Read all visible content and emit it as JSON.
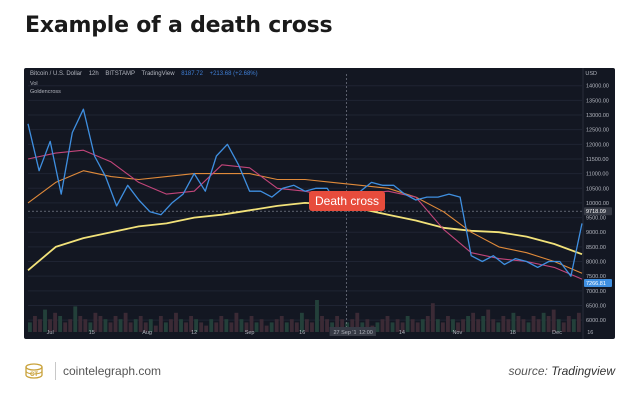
{
  "title": "Example of a death cross",
  "chart_header": {
    "pair": "Bitcoin / U.S. Dollar",
    "interval": "12h",
    "exchange": "BITSTAMP",
    "platform": "TradingView",
    "price": "8187.72",
    "change": "+213.68 (+2.68%)",
    "vol_label": "Vol",
    "indicator_label": "Goldencross",
    "currency": "USD"
  },
  "annotation": "Death cross",
  "footer": {
    "site": "cointelegraph.com",
    "source_prefix": "source:",
    "source_name": "Tradingview"
  },
  "colors": {
    "background": "#131722",
    "price_line": "#3f8fe0",
    "ma_short": "#c2457a",
    "ma_mid": "#e08a3a",
    "ma_long": "#f2e27a",
    "callout": "#e74c3c"
  },
  "chart_data": {
    "type": "line",
    "title": "Example of a death cross",
    "x_tick_labels": [
      "Jul",
      "15",
      "Aug",
      "12",
      "Sep",
      "16",
      "27 Sep '19",
      "12:00",
      "14",
      "Nov",
      "18",
      "Dec",
      "16"
    ],
    "y_tick_labels": [
      14000,
      13500,
      13000,
      12500,
      12000,
      11500,
      11000,
      10500,
      10000,
      9500,
      9000,
      8500,
      8000,
      7500,
      7000,
      6500,
      6000
    ],
    "ylim": [
      5800,
      14400
    ],
    "crosshair_price": 9718.09,
    "last_price": 7266.81,
    "series": [
      {
        "key": "price",
        "x": [
          0,
          2,
          4,
          6,
          8,
          10,
          12,
          14,
          16,
          18,
          20,
          22,
          24,
          26,
          28,
          30,
          32,
          34,
          36,
          38,
          40,
          42,
          44,
          46,
          48,
          50,
          52,
          54,
          56,
          58,
          60,
          62,
          64,
          66,
          68,
          70,
          72,
          74,
          76,
          78,
          80,
          82,
          84,
          86,
          88,
          90,
          92,
          94,
          96,
          98,
          100
        ],
        "values": [
          12700,
          11100,
          12100,
          10300,
          12400,
          13200,
          11600,
          10900,
          9900,
          10600,
          10100,
          9700,
          9600,
          10000,
          10300,
          11000,
          10400,
          11600,
          12000,
          11300,
          10400,
          10400,
          10200,
          10500,
          10600,
          10400,
          10500,
          10500,
          9900,
          10100,
          10400,
          10700,
          10600,
          10600,
          10300,
          10100,
          10200,
          10200,
          10300,
          10200,
          8200,
          8000,
          8200,
          7900,
          8100,
          8000,
          7800,
          8000,
          8000,
          7500,
          9300
        ]
      },
      {
        "key": "ma_short",
        "x": [
          0,
          5,
          10,
          15,
          20,
          25,
          30,
          35,
          40,
          45,
          50,
          55,
          60,
          65,
          70,
          75,
          80,
          85,
          90,
          95,
          100
        ],
        "values": [
          11500,
          11700,
          11800,
          11400,
          10700,
          10300,
          10400,
          11300,
          11200,
          10500,
          10400,
          10200,
          10300,
          10400,
          10200,
          9100,
          8300,
          8100,
          8000,
          7800,
          7400
        ]
      },
      {
        "key": "ma_mid",
        "x": [
          0,
          5,
          10,
          15,
          20,
          25,
          30,
          35,
          40,
          45,
          50,
          55,
          60,
          65,
          70,
          75,
          80,
          85,
          90,
          95,
          100
        ],
        "values": [
          10000,
          10700,
          11100,
          10900,
          10800,
          10900,
          11000,
          11000,
          11000,
          10800,
          10800,
          10700,
          10600,
          10500,
          10200,
          9700,
          9000,
          8500,
          8300,
          8000,
          7600
        ]
      },
      {
        "key": "ma_long",
        "x": [
          0,
          5,
          10,
          15,
          20,
          25,
          30,
          35,
          40,
          45,
          50,
          55,
          60,
          65,
          70,
          75,
          80,
          85,
          90,
          95,
          100
        ],
        "values": [
          7700,
          8500,
          8800,
          9000,
          9200,
          9300,
          9500,
          9600,
          9750,
          9900,
          10000,
          9950,
          9800,
          9600,
          9400,
          9150,
          9050,
          9000,
          8850,
          8600,
          8250
        ]
      }
    ],
    "volume": [
      3,
      5,
      4,
      7,
      4,
      6,
      5,
      3,
      4,
      8,
      5,
      4,
      3,
      6,
      5,
      4,
      3,
      5,
      4,
      6,
      3,
      4,
      5,
      3,
      4,
      2,
      5,
      3,
      4,
      6,
      4,
      3,
      5,
      4,
      3,
      2,
      4,
      3,
      5,
      4,
      3,
      6,
      4,
      3,
      5,
      3,
      4,
      2,
      3,
      4,
      5,
      3,
      4,
      3,
      6,
      4,
      3,
      10,
      5,
      4,
      3,
      5,
      4,
      3,
      4,
      6,
      3,
      4,
      2,
      3,
      4,
      5,
      3,
      4,
      3,
      5,
      4,
      3,
      4,
      5,
      9,
      4,
      3,
      5,
      4,
      3,
      4,
      5,
      6,
      4,
      5,
      7,
      4,
      3,
      5,
      4,
      6,
      5,
      4,
      3,
      5,
      4,
      6,
      5,
      7,
      4,
      3,
      5,
      4,
      6
    ]
  }
}
